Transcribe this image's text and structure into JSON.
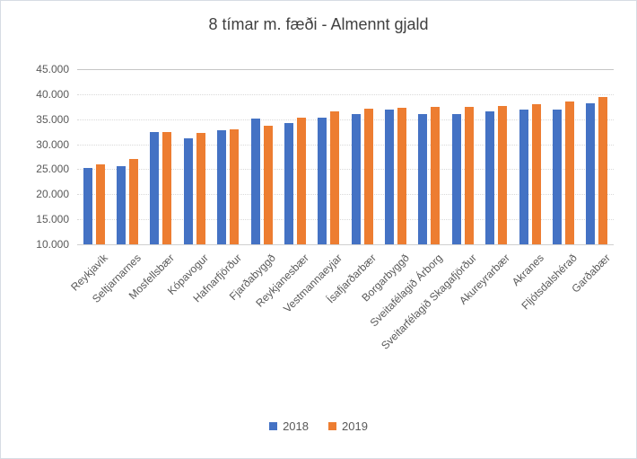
{
  "chart_data": {
    "type": "bar",
    "title": "8 tímar m. fæði - Almennt gjald",
    "categories": [
      "Reykjavík",
      "Seltjarnarnes",
      "Mosfellsbær",
      "Kópavogur",
      "Hafnarfjörður",
      "Fjarðabyggð",
      "Reykjanesbær",
      "Vestmannaeyjar",
      "Ísafjarðarbær",
      "Borgarbyggð",
      "Sveitafélagið Árborg",
      "Sveitarfélagið Skagafjörður",
      "Akureyrarbær",
      "Akranes",
      "Fljótsdalshérað",
      "Garðabær"
    ],
    "series": [
      {
        "name": "2018",
        "color": "#4472C4",
        "values": [
          25200,
          25600,
          32400,
          31200,
          32800,
          35100,
          34300,
          35400,
          36000,
          36900,
          36000,
          36100,
          36500,
          36900,
          36900,
          38200
        ]
      },
      {
        "name": "2019",
        "color": "#ED7D31",
        "values": [
          25900,
          27100,
          32400,
          32300,
          32900,
          33700,
          35400,
          36500,
          37100,
          37200,
          37400,
          37400,
          37700,
          38000,
          38500,
          39400
        ]
      }
    ],
    "ylim": [
      10000,
      45000
    ],
    "ytick_step": 5000,
    "ytick_labels": [
      "45.000",
      "40.000",
      "35.000",
      "30.000",
      "25.000",
      "20.000",
      "15.000",
      "10.000"
    ],
    "xlabel": "",
    "ylabel": "",
    "grid": true,
    "legend_position": "bottom",
    "x_label_rotation_deg": 45
  }
}
